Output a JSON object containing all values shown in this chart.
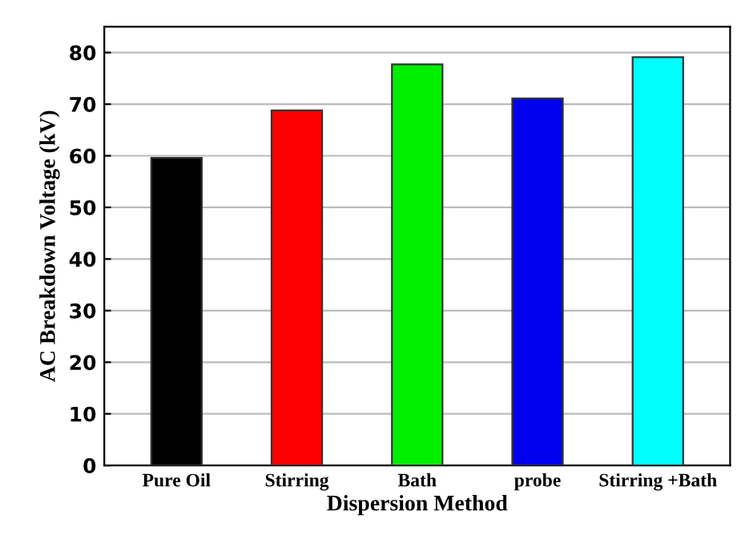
{
  "chart_data": {
    "type": "bar",
    "xlabel": "Dispersion Method",
    "ylabel": "AC Breakdown Voltage (kV)",
    "categories": [
      "Pure Oil",
      "Stirring",
      "Bath",
      "probe",
      "Stirring +Bath"
    ],
    "values": [
      59.6,
      68.8,
      77.7,
      71.1,
      79.1
    ],
    "colors": [
      "#000000",
      "#ff0000",
      "#00ee00",
      "#0000ee",
      "#00ffff"
    ],
    "ylim": [
      0,
      85
    ],
    "yticks": [
      0,
      10,
      20,
      30,
      40,
      50,
      60,
      70,
      80
    ],
    "grid": "y"
  }
}
